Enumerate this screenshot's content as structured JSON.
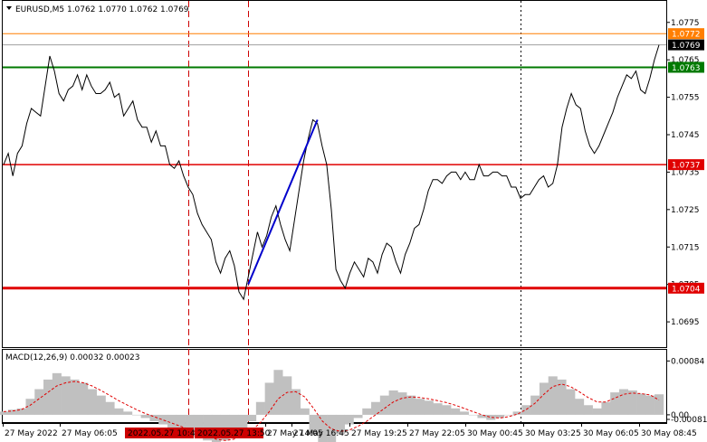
{
  "window": {
    "title": "EURUSD,M5  1.0762 1.0770 1.0762 1.0769",
    "menu_icon": "triangle-down-icon"
  },
  "colors": {
    "price_line": "#000000",
    "green_level": "#007a00",
    "red_level": "#e00000",
    "orange_level": "#ff7f00",
    "trend_line": "#0000cc",
    "macd_hist": "#c0c0c0",
    "macd_signal": "#e00000",
    "vline_red": "#cc0000",
    "vline_black": "#000000",
    "current_price": "#a0a0a0"
  },
  "chart_data": [
    {
      "type": "line",
      "title": "EURUSD,M5  1.0762 1.0770 1.0762 1.0769",
      "symbol": "EURUSD",
      "timeframe": "M5",
      "ohlc": {
        "open": 1.0762,
        "high": 1.077,
        "low": 1.0762,
        "close": 1.0769
      },
      "ylim": [
        1.06885,
        1.07805
      ],
      "y_ticks": [
        1.0775,
        1.0765,
        1.0755,
        1.0745,
        1.0735,
        1.0725,
        1.0715,
        1.0705,
        1.0695
      ],
      "y_tick_labels": [
        "1.0775",
        "1.0765",
        "1.0755",
        "1.0745",
        "1.0735",
        "1.0725",
        "1.0715",
        "1.0705",
        "1.0695"
      ],
      "x_tick_labels": [
        "27 May 2022",
        "27 May 06:05",
        "27 May 14:05",
        "27 May 16:45",
        "27 May 19:25",
        "27 May 22:05",
        "30 May 00:45",
        "30 May 03:25",
        "30 May 06:05",
        "30 May 08:45"
      ],
      "price_series": [
        1.0737,
        1.074,
        1.0734,
        1.074,
        1.0742,
        1.0748,
        1.0752,
        1.0751,
        1.075,
        1.0758,
        1.0766,
        1.0762,
        1.0756,
        1.0754,
        1.0757,
        1.0758,
        1.0761,
        1.0757,
        1.0761,
        1.0758,
        1.0756,
        1.0756,
        1.0757,
        1.0759,
        1.0755,
        1.0756,
        1.075,
        1.0752,
        1.0754,
        1.0749,
        1.0747,
        1.0747,
        1.0743,
        1.0746,
        1.0742,
        1.0742,
        1.0737,
        1.0736,
        1.0738,
        1.0734,
        1.0731,
        1.0729,
        1.0724,
        1.0721,
        1.0719,
        1.0717,
        1.0711,
        1.0708,
        1.0712,
        1.0714,
        1.071,
        1.0703,
        1.0701,
        1.0707,
        1.0713,
        1.0719,
        1.0715,
        1.0718,
        1.0723,
        1.0726,
        1.0721,
        1.0717,
        1.0714,
        1.0722,
        1.073,
        1.0738,
        1.0744,
        1.0749,
        1.0748,
        1.0742,
        1.0737,
        1.0725,
        1.0709,
        1.0706,
        1.0704,
        1.0708,
        1.0711,
        1.0709,
        1.0707,
        1.0712,
        1.0711,
        1.0708,
        1.0713,
        1.0716,
        1.0715,
        1.0711,
        1.0708,
        1.0713,
        1.0716,
        1.072,
        1.0721,
        1.0725,
        1.073,
        1.0733,
        1.0733,
        1.0732,
        1.0734,
        1.0735,
        1.0735,
        1.0733,
        1.0735,
        1.0733,
        1.0733,
        1.0737,
        1.0734,
        1.0734,
        1.0735,
        1.0735,
        1.0734,
        1.0734,
        1.0731,
        1.0731,
        1.0728,
        1.0729,
        1.0729,
        1.0731,
        1.0733,
        1.0734,
        1.0731,
        1.0732,
        1.0737,
        1.0747,
        1.0752,
        1.0756,
        1.0753,
        1.0752,
        1.0746,
        1.0742,
        1.074,
        1.0742,
        1.0745,
        1.0748,
        1.0751,
        1.0755,
        1.0758,
        1.0761,
        1.076,
        1.0762,
        1.0757,
        1.0756,
        1.076,
        1.0765,
        1.0769
      ],
      "levels": [
        {
          "value": 1.0772,
          "label": "1.0772",
          "color": "#ff7f00"
        },
        {
          "value": 1.0769,
          "label": "1.0769",
          "color": "#a0a0a0"
        },
        {
          "value": 1.0763,
          "label": "1.0763",
          "color": "#007a00"
        },
        {
          "value": 1.0737,
          "label": "1.0737",
          "color": "#e00000"
        },
        {
          "value": 1.0704,
          "label": "1.0704",
          "color": "#e00000"
        }
      ],
      "trend_line": {
        "from_index": 53,
        "from_value": 1.0705,
        "to_index": 68,
        "to_value": 1.0749
      },
      "vertical_markers": [
        {
          "index": 40,
          "label": "2022.05.27 10:40",
          "style": "dashed-red"
        },
        {
          "index": 53,
          "label": "2022.05.27 13:50",
          "style": "dashed-red"
        },
        {
          "index": 112,
          "label": "",
          "style": "dotted-black"
        }
      ],
      "grid": false
    },
    {
      "type": "bar",
      "title": "MACD(12,26,9) 0.00032 0.00023",
      "indicator": "MACD",
      "params": [
        12,
        26,
        9
      ],
      "macd_value": 0.00032,
      "signal_value": 0.00023,
      "ylim": [
        -0.0001,
        0.001
      ],
      "y_tick_labels": [
        "0.00084",
        "0.00",
        "-0.00081"
      ],
      "y_ticks": [
        0.00084,
        0.0,
        -0.00081
      ],
      "histogram": [
        5e-05,
        8e-05,
        0.0001,
        0.00025,
        0.0004,
        0.00055,
        0.00065,
        0.0006,
        0.00055,
        0.0005,
        0.0004,
        0.0003,
        0.0002,
        0.0001,
        5e-05,
        0.0,
        -5e-05,
        -0.0001,
        -0.00015,
        -0.0002,
        -0.00025,
        -0.0003,
        -0.00035,
        -0.0004,
        -0.00045,
        -0.0004,
        -0.0003,
        -0.0002,
        -0.0001,
        0.0002,
        0.0005,
        0.0007,
        0.0006,
        0.0004,
        0.0001,
        -0.0003,
        -0.0005,
        -0.00045,
        -0.0003,
        -0.00015,
        -5e-05,
        0.0001,
        0.0002,
        0.0003,
        0.00038,
        0.00035,
        0.0003,
        0.00025,
        0.00022,
        0.00018,
        0.00015,
        0.0001,
        5e-05,
        0.0,
        -5e-05,
        -8e-05,
        -5e-05,
        0.0,
        5e-05,
        0.00015,
        0.0003,
        0.0005,
        0.0006,
        0.00055,
        0.0004,
        0.00025,
        0.00015,
        0.0001,
        0.0002,
        0.00035,
        0.0004,
        0.00038,
        0.00033,
        0.0003,
        0.00032
      ],
      "signal": [
        5e-05,
        6e-05,
        8e-05,
        0.00015,
        0.00025,
        0.00035,
        0.00045,
        0.0005,
        0.00052,
        0.0005,
        0.00045,
        0.00038,
        0.0003,
        0.00022,
        0.00015,
        8e-05,
        2e-05,
        -3e-05,
        -8e-05,
        -0.00013,
        -0.00018,
        -0.00023,
        -0.00028,
        -0.00033,
        -0.00038,
        -0.0004,
        -0.00038,
        -0.00032,
        -0.00025,
        -0.00012,
        5e-05,
        0.00025,
        0.00035,
        0.00036,
        0.00028,
        0.0001,
        -0.0001,
        -0.00022,
        -0.00026,
        -0.00024,
        -0.00018,
        -0.0001,
        0.0,
        0.0001,
        0.0002,
        0.00026,
        0.00028,
        0.00027,
        0.00025,
        0.00022,
        0.00019,
        0.00015,
        0.0001,
        5e-05,
        0.0,
        -4e-05,
        -5e-05,
        -3e-05,
        1e-05,
        8e-05,
        0.00018,
        0.00032,
        0.00044,
        0.00048,
        0.00044,
        0.00036,
        0.00027,
        0.0002,
        0.0002,
        0.00026,
        0.00032,
        0.00034,
        0.00033,
        0.00031,
        0.00023
      ]
    }
  ]
}
